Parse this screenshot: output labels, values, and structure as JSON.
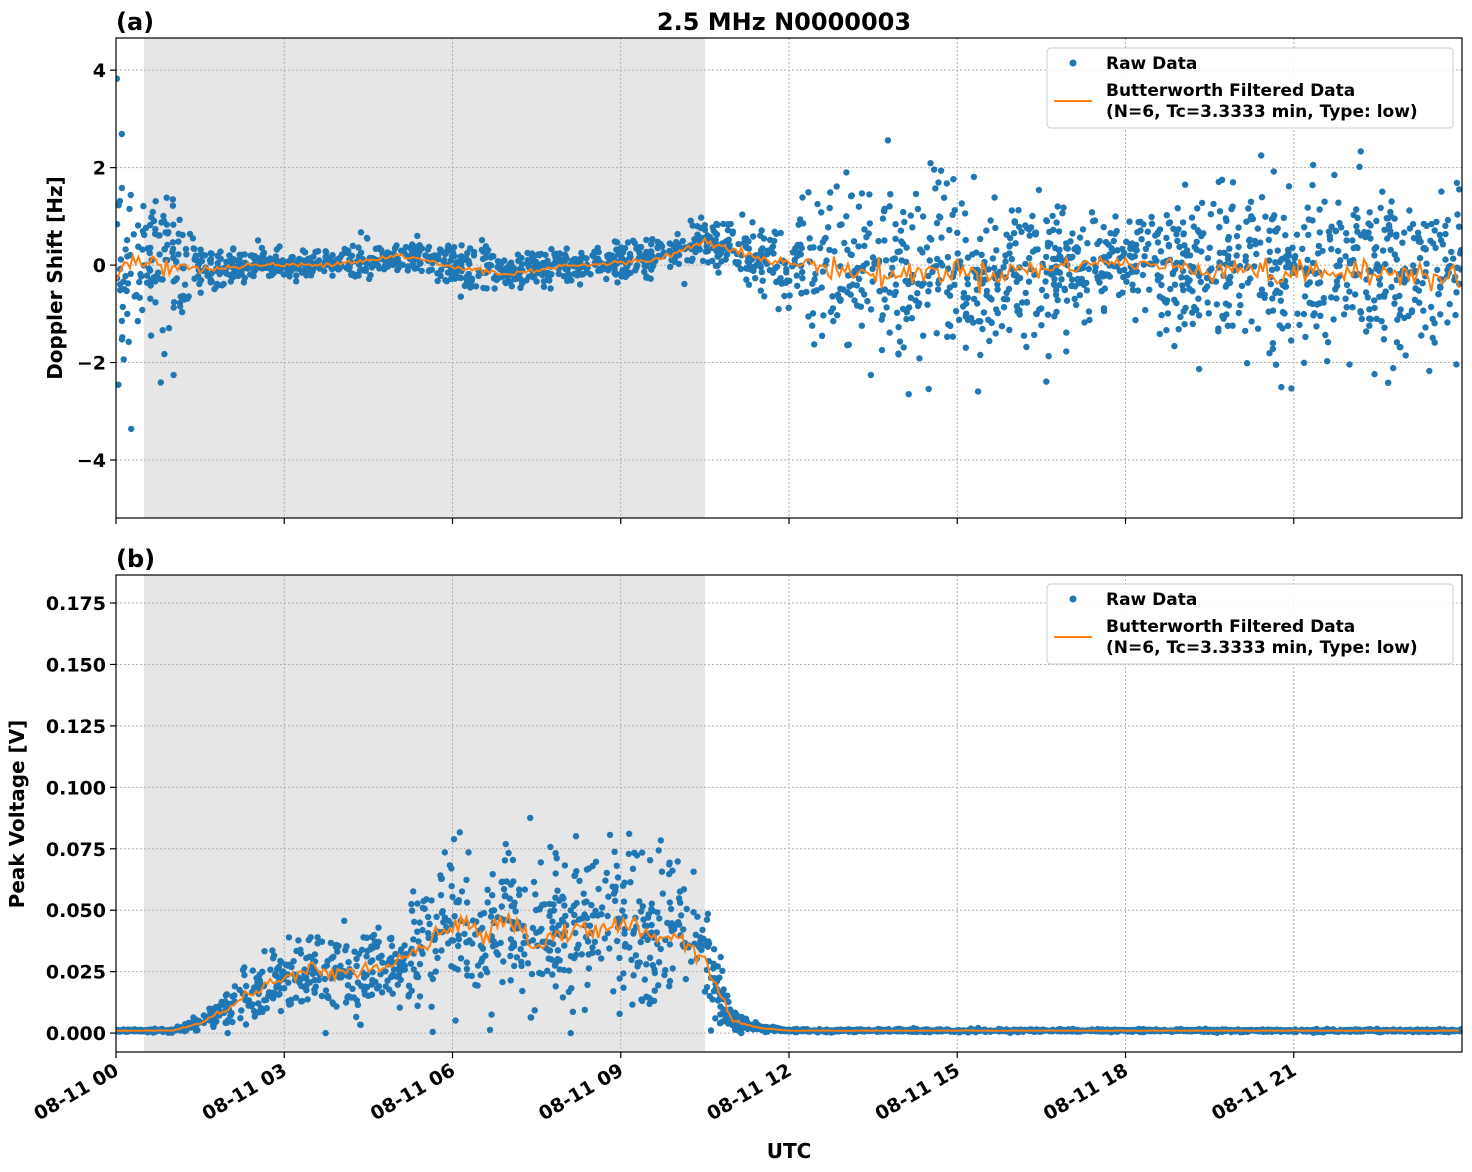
{
  "title": "2.5 MHz N0000003",
  "chart_data": [
    {
      "type": "scatter",
      "panel_label": "(a)",
      "ylabel": "Doppler Shift [Hz]",
      "xlabel": "",
      "xlim_hours": [
        0,
        24
      ],
      "ylim": [
        -5.19,
        4.66
      ],
      "yticks": [
        4,
        2,
        0,
        -2,
        -4
      ],
      "ytick_labels": [
        "4",
        "2",
        "0",
        "−2",
        "−4"
      ],
      "grid": true,
      "shaded_region_hours": [
        0.5,
        10.5
      ],
      "legend": {
        "placement": "top-right",
        "entries": [
          "Raw Data",
          "Butterworth Filtered Data",
          "(N=6, Tc=3.3333 min, Type: low)"
        ]
      },
      "x_hours": [
        0,
        0.5,
        1,
        1.5,
        2,
        2.5,
        3,
        3.5,
        4,
        4.5,
        5,
        5.5,
        6,
        6.5,
        7,
        7.5,
        8,
        8.5,
        9,
        9.5,
        10,
        10.5,
        11,
        11.5,
        12,
        12.5,
        13,
        13.5,
        14,
        14.5,
        15,
        15.5,
        16,
        16.5,
        17,
        17.5,
        18,
        18.5,
        19,
        19.5,
        20,
        20.5,
        21,
        21.5,
        22,
        22.5,
        23,
        23.5,
        24
      ],
      "series": [
        {
          "name": "Butterworth Filtered Data",
          "color": "#ff7f0e",
          "values": [
            0,
            0.1,
            0,
            -0.1,
            -0.05,
            0,
            0,
            0,
            0.05,
            0.1,
            0.2,
            0.1,
            -0.05,
            -0.1,
            -0.2,
            -0.1,
            0,
            0,
            0.05,
            0.1,
            0.25,
            0.5,
            0.35,
            0.1,
            0.05,
            0,
            -0.1,
            -0.2,
            -0.2,
            -0.15,
            -0.1,
            -0.2,
            -0.1,
            -0.1,
            0,
            0.05,
            0.05,
            0,
            -0.05,
            -0.1,
            0,
            -0.2,
            -0.2,
            -0.1,
            -0.2,
            -0.2,
            -0.1,
            -0.2,
            -0.2
          ]
        },
        {
          "name": "Raw Data",
          "color": "#1f77b4",
          "spread": [
            2.6,
            1.1,
            1.5,
            0.5,
            0.3,
            0.3,
            0.3,
            0.3,
            0.3,
            0.35,
            0.4,
            0.3,
            0.4,
            0.5,
            0.45,
            0.35,
            0.3,
            0.3,
            0.35,
            0.35,
            0.4,
            0.5,
            0.5,
            0.6,
            0.8,
            1.2,
            1.5,
            1.6,
            1.6,
            1.5,
            1.5,
            1.5,
            1.4,
            1.3,
            1.1,
            0.8,
            0.8,
            1.0,
            1.3,
            1.5,
            1.5,
            1.6,
            1.6,
            1.5,
            1.6,
            1.6,
            1.6,
            1.6,
            1.6
          ]
        }
      ]
    },
    {
      "type": "scatter",
      "panel_label": "(b)",
      "ylabel": "Peak Voltage [V]",
      "xlabel": "UTC",
      "xlim_hours": [
        0,
        24
      ],
      "ylim": [
        -0.0077,
        0.1864
      ],
      "yticks": [
        0.175,
        0.15,
        0.125,
        0.1,
        0.075,
        0.05,
        0.025,
        0
      ],
      "ytick_labels": [
        "0.175",
        "0.150",
        "0.125",
        "0.100",
        "0.075",
        "0.050",
        "0.025",
        "0.000"
      ],
      "xtick_labels": [
        "08-11 00",
        "08-11 03",
        "08-11 06",
        "08-11 09",
        "08-11 12",
        "08-11 15",
        "08-11 18",
        "08-11 21"
      ],
      "xtick_hours": [
        0,
        3,
        6,
        9,
        12,
        15,
        18,
        21
      ],
      "grid": true,
      "shaded_region_hours": [
        0.5,
        10.5
      ],
      "legend": {
        "placement": "top-right",
        "entries": [
          "Raw Data",
          "Butterworth Filtered Data",
          "(N=6, Tc=3.3333 min, Type: low)"
        ]
      },
      "x_hours": [
        0,
        0.5,
        1,
        1.5,
        2,
        2.5,
        3,
        3.5,
        4,
        4.5,
        5,
        5.5,
        6,
        6.5,
        7,
        7.5,
        8,
        8.5,
        9,
        9.5,
        10,
        10.5,
        11,
        11.5,
        12,
        12.5,
        13,
        13.5,
        14,
        14.5,
        15,
        15.5,
        16,
        16.5,
        17,
        17.5,
        18,
        18.5,
        19,
        19.5,
        20,
        20.5,
        21,
        21.5,
        22,
        22.5,
        23,
        23.5,
        24
      ],
      "series": [
        {
          "name": "Butterworth Filtered Data",
          "color": "#ff7f0e",
          "values": [
            0.001,
            0.001,
            0.001,
            0.004,
            0.01,
            0.018,
            0.022,
            0.026,
            0.024,
            0.026,
            0.028,
            0.035,
            0.045,
            0.04,
            0.048,
            0.035,
            0.042,
            0.04,
            0.045,
            0.04,
            0.04,
            0.03,
            0.005,
            0.002,
            0.001,
            0.001,
            0.001,
            0.001,
            0.001,
            0.001,
            0.001,
            0.001,
            0.001,
            0.001,
            0.001,
            0.001,
            0.001,
            0.001,
            0.001,
            0.001,
            0.001,
            0.001,
            0.001,
            0.001,
            0.001,
            0.001,
            0.001,
            0.001,
            0.001
          ]
        },
        {
          "name": "Raw Data",
          "color": "#1f77b4",
          "spread": [
            0.0005,
            0.0005,
            0.0008,
            0.003,
            0.008,
            0.013,
            0.015,
            0.016,
            0.016,
            0.016,
            0.018,
            0.022,
            0.03,
            0.025,
            0.035,
            0.025,
            0.028,
            0.028,
            0.035,
            0.028,
            0.025,
            0.022,
            0.004,
            0.001,
            0.0005,
            0.0005,
            0.0005,
            0.0005,
            0.0005,
            0.0005,
            0.0005,
            0.0005,
            0.0005,
            0.0005,
            0.0005,
            0.0005,
            0.0005,
            0.0005,
            0.0005,
            0.0005,
            0.0005,
            0.0005,
            0.0005,
            0.0005,
            0.0005,
            0.0005,
            0.0005,
            0.0005,
            0.0005
          ]
        }
      ]
    }
  ]
}
